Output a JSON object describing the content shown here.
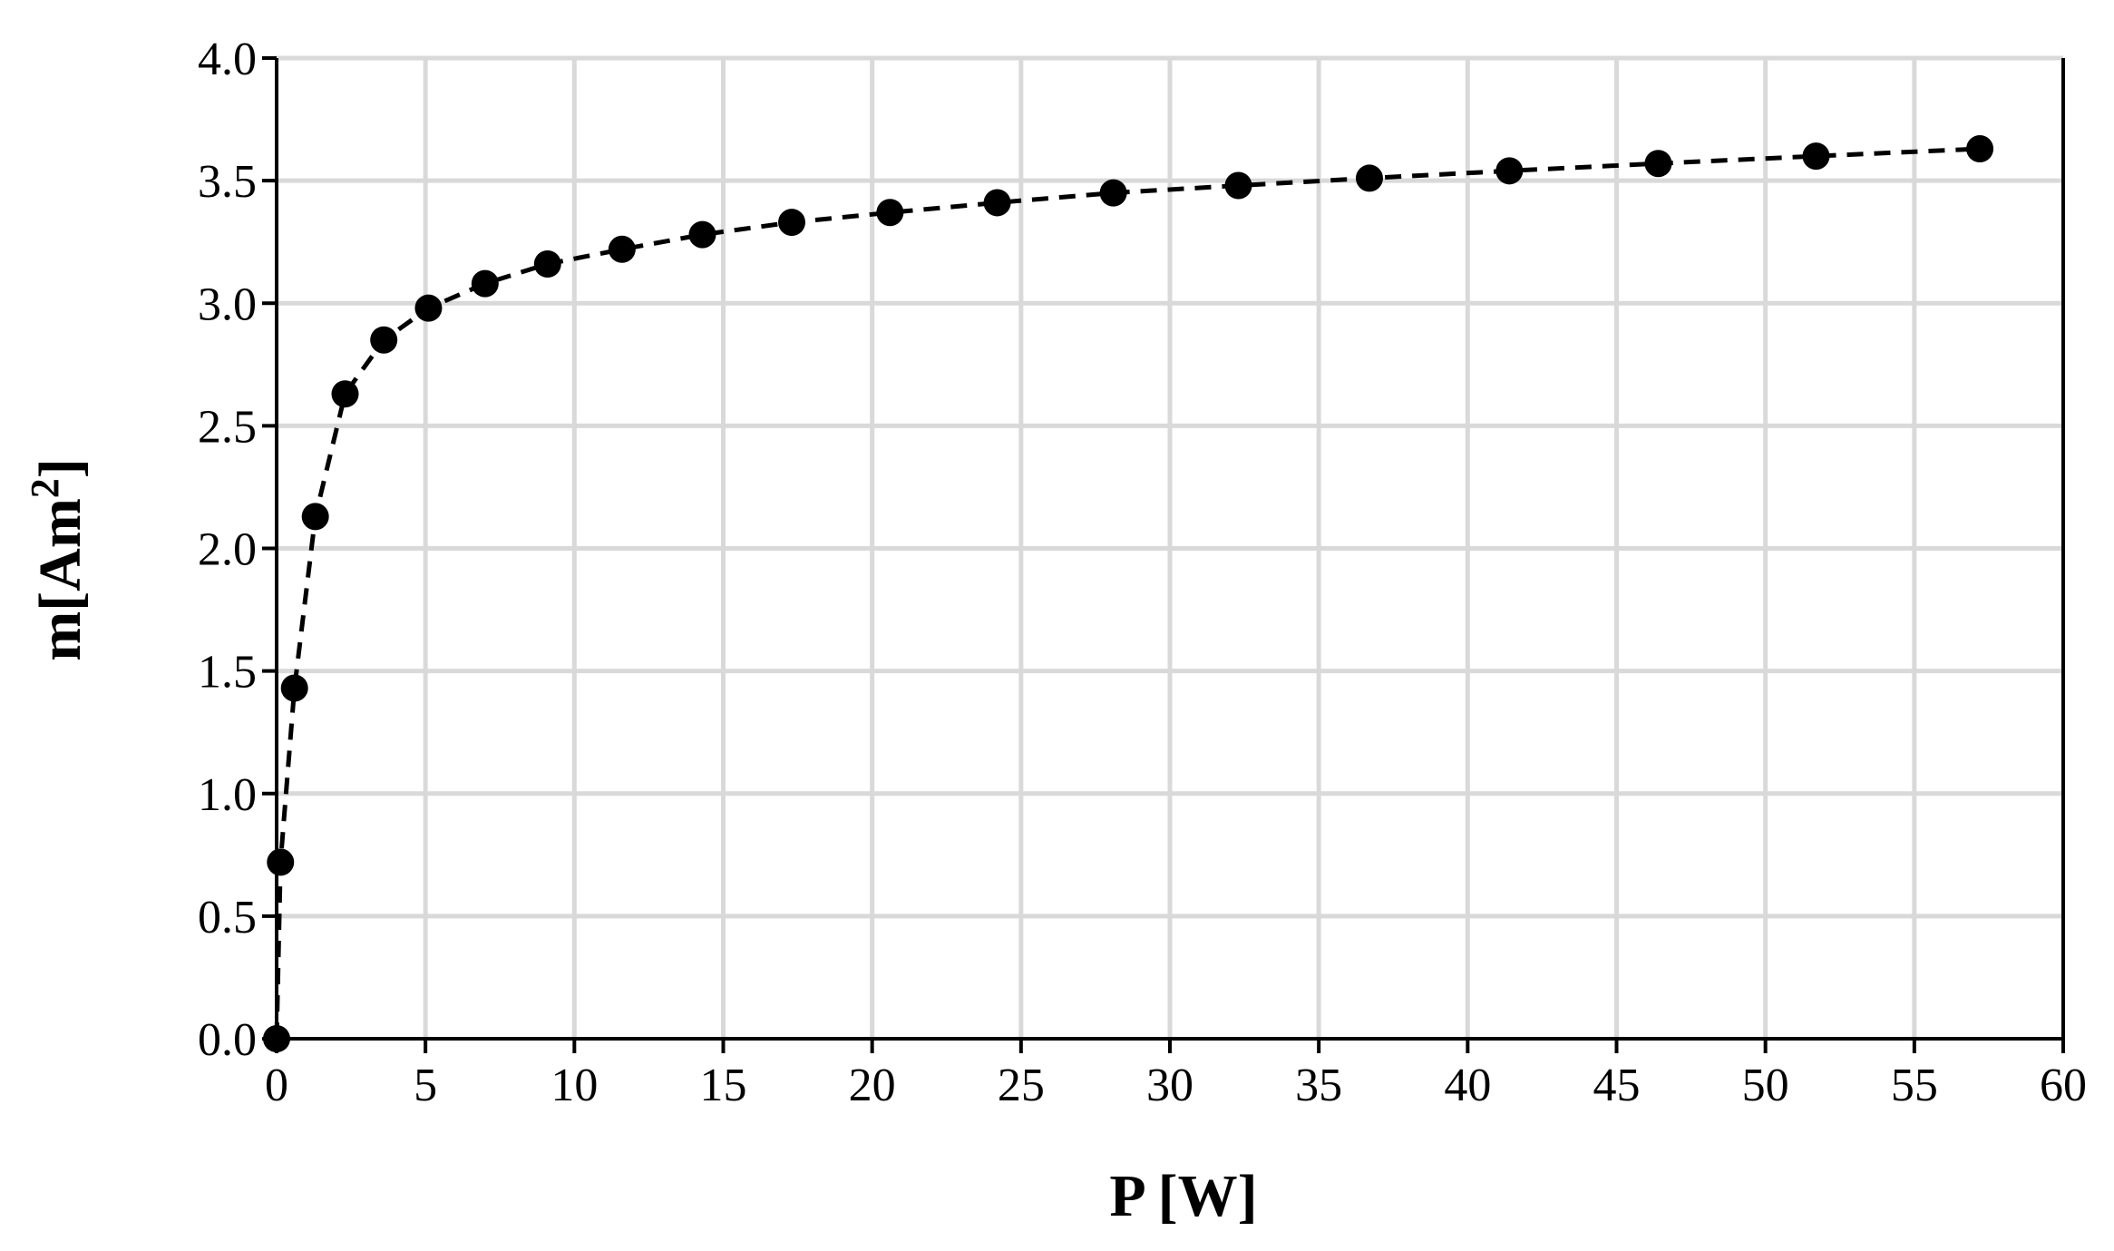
{
  "chart_data": {
    "type": "scatter",
    "xlabel": "P [W]",
    "ylabel_main": "m[Am",
    "ylabel_sup": "2",
    "ylabel_end": "]",
    "xlim": [
      0,
      60
    ],
    "ylim": [
      0,
      4
    ],
    "xticks": [
      "0",
      "5",
      "10",
      "15",
      "20",
      "25",
      "30",
      "35",
      "40",
      "45",
      "50",
      "55",
      "60"
    ],
    "yticks": [
      "0.0",
      "0.5",
      "1.0",
      "1.5",
      "2.0",
      "2.5",
      "3.0",
      "3.5",
      "4.0"
    ],
    "grid": true,
    "legend": "none",
    "colors": {
      "series": "#000000",
      "grid": "#d9d9d9"
    },
    "series": [
      {
        "line_style": "dashed",
        "marker": "circle",
        "x": [
          0.0,
          0.13,
          0.6,
          1.3,
          2.3,
          3.6,
          5.1,
          7.0,
          9.1,
          11.6,
          14.3,
          17.3,
          20.6,
          24.2,
          28.1,
          32.3,
          36.7,
          41.4,
          46.4,
          51.7,
          57.2
        ],
        "y": [
          0.0,
          0.72,
          1.43,
          2.13,
          2.63,
          2.85,
          2.98,
          3.08,
          3.16,
          3.22,
          3.28,
          3.33,
          3.37,
          3.41,
          3.45,
          3.48,
          3.51,
          3.54,
          3.57,
          3.6,
          3.63
        ]
      }
    ]
  }
}
